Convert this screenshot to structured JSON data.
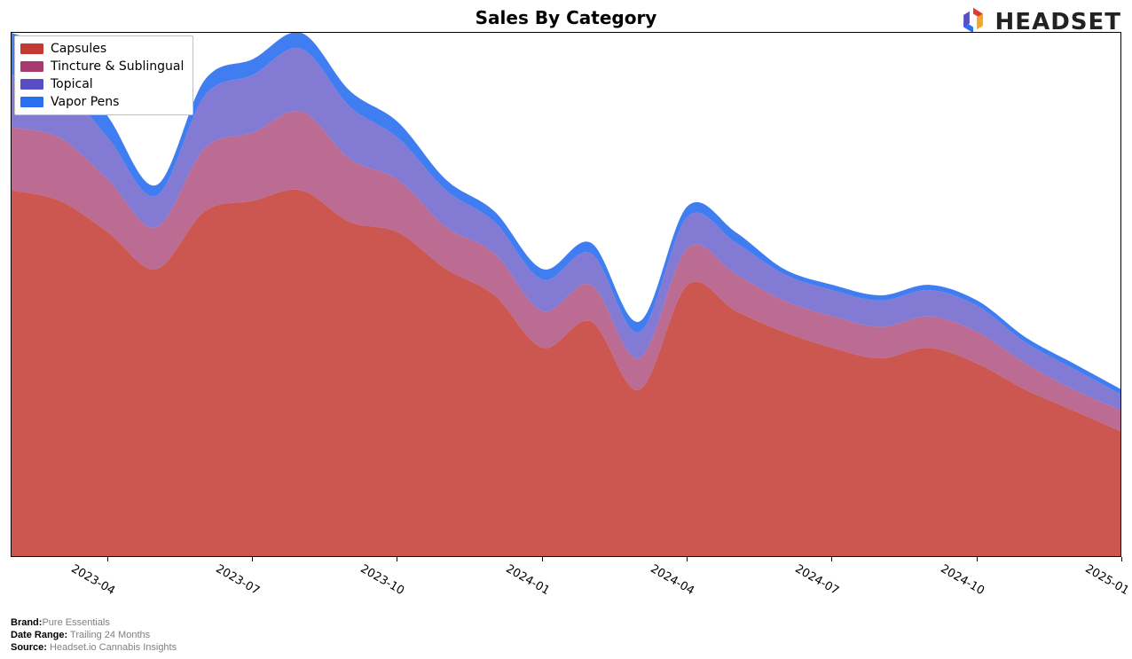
{
  "title": "Sales By Category",
  "logo": {
    "text": "HEADSET"
  },
  "chart": {
    "type": "area-stacked",
    "background_color": "#ffffff",
    "border_color": "#000000",
    "xlim": [
      0,
      23
    ],
    "ylim": [
      0,
      100
    ],
    "x_tick_labels": [
      "2023-04",
      "2023-07",
      "2023-10",
      "2024-01",
      "2024-04",
      "2024-07",
      "2024-10",
      "2025-01"
    ],
    "x_tick_positions": [
      2,
      5,
      8,
      11,
      14,
      17,
      20,
      23
    ],
    "series": [
      {
        "name": "Capsules",
        "color": "#c33a32",
        "opacity": 0.85,
        "values": [
          70,
          68,
          62,
          55,
          66,
          68,
          70,
          64,
          62,
          55,
          50,
          40,
          45,
          32,
          52,
          47,
          43,
          40,
          38,
          40,
          37,
          32,
          28,
          24
        ]
      },
      {
        "name": "Tincture & Sublingual",
        "color": "#a63a6e",
        "opacity": 0.75,
        "values": [
          12,
          12,
          10,
          8,
          12,
          13,
          15,
          12,
          10,
          8,
          8,
          7,
          7,
          6,
          7,
          7,
          6,
          6,
          6,
          6,
          6,
          5,
          4,
          4
        ]
      },
      {
        "name": "Topical",
        "color": "#5a4ec4",
        "opacity": 0.75,
        "values": [
          10,
          10,
          8,
          6,
          10,
          11,
          12,
          10,
          8,
          7,
          6,
          6,
          6,
          5,
          6,
          6,
          5,
          5,
          5,
          5,
          5,
          4,
          4,
          3
        ]
      },
      {
        "name": "Vapor Pens",
        "color": "#2a6ff0",
        "opacity": 0.9,
        "values": [
          8,
          6,
          4,
          2,
          3,
          3,
          3,
          3,
          3,
          2,
          2,
          2,
          2,
          2,
          2,
          2,
          1,
          1,
          1,
          1,
          1,
          1,
          1,
          1
        ]
      }
    ],
    "title_fontsize": 20,
    "tick_fontsize": 13,
    "legend_fontsize": 14,
    "x_label_rotation_deg": 30
  },
  "footer": {
    "brand_key": "Brand:",
    "brand_val": "Pure Essentials",
    "range_key": "Date Range:",
    "range_val": " Trailing 24 Months",
    "source_key": "Source:",
    "source_val": " Headset.io Cannabis Insights"
  },
  "legend_items": [
    {
      "label": "Capsules",
      "color": "#c33a32"
    },
    {
      "label": "Tincture & Sublingual",
      "color": "#a63a6e"
    },
    {
      "label": "Topical",
      "color": "#5a4ec4"
    },
    {
      "label": "Vapor Pens",
      "color": "#2a6ff0"
    }
  ]
}
